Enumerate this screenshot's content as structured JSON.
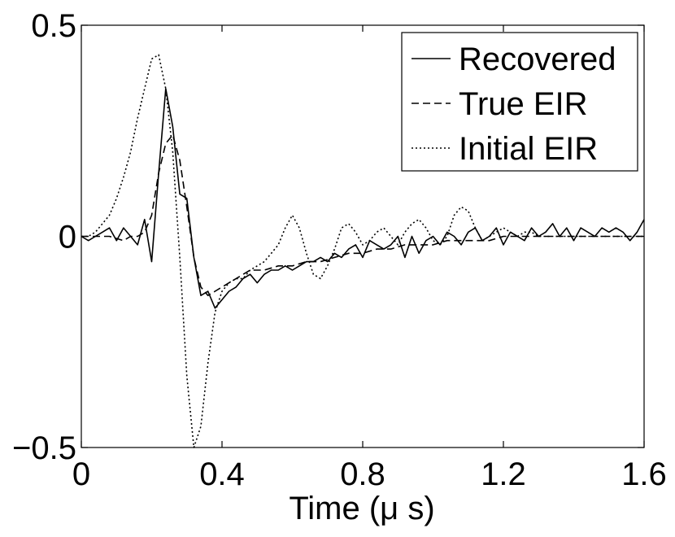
{
  "chart_data": {
    "type": "line",
    "title": "",
    "xlabel": "Time (μ s)",
    "ylabel": "",
    "xlim": [
      0,
      1.6
    ],
    "ylim": [
      -0.5,
      0.5
    ],
    "xticks": [
      0,
      0.4,
      0.8,
      1.2,
      1.6
    ],
    "xtick_labels": [
      "0",
      "0.4",
      "0.8",
      "1.2",
      "1.6"
    ],
    "yticks": [
      -0.5,
      0,
      0.5
    ],
    "ytick_labels": [
      "−0.5",
      "0",
      "0.5"
    ],
    "grid": false,
    "legend_position": "top-right",
    "series": [
      {
        "name": "Recovered",
        "style": "solid",
        "color": "#000000",
        "x": [
          0.0,
          0.02,
          0.04,
          0.06,
          0.08,
          0.1,
          0.12,
          0.14,
          0.16,
          0.18,
          0.2,
          0.22,
          0.24,
          0.26,
          0.28,
          0.3,
          0.32,
          0.34,
          0.36,
          0.38,
          0.4,
          0.42,
          0.44,
          0.46,
          0.48,
          0.5,
          0.52,
          0.54,
          0.56,
          0.58,
          0.6,
          0.62,
          0.64,
          0.66,
          0.68,
          0.7,
          0.72,
          0.74,
          0.76,
          0.78,
          0.8,
          0.82,
          0.84,
          0.86,
          0.88,
          0.9,
          0.92,
          0.94,
          0.96,
          0.98,
          1.0,
          1.02,
          1.04,
          1.06,
          1.08,
          1.1,
          1.12,
          1.14,
          1.16,
          1.18,
          1.2,
          1.22,
          1.24,
          1.26,
          1.28,
          1.3,
          1.32,
          1.34,
          1.36,
          1.38,
          1.4,
          1.42,
          1.44,
          1.46,
          1.48,
          1.5,
          1.52,
          1.54,
          1.56,
          1.58,
          1.6
        ],
        "y": [
          0.0,
          -0.01,
          0.0,
          0.01,
          0.02,
          -0.01,
          0.02,
          0.0,
          -0.02,
          0.04,
          -0.06,
          0.15,
          0.35,
          0.26,
          0.1,
          0.09,
          -0.05,
          -0.14,
          -0.13,
          -0.17,
          -0.15,
          -0.13,
          -0.12,
          -0.1,
          -0.09,
          -0.11,
          -0.09,
          -0.08,
          -0.08,
          -0.07,
          -0.08,
          -0.07,
          -0.06,
          -0.06,
          -0.05,
          -0.06,
          -0.04,
          -0.05,
          -0.03,
          -0.02,
          -0.05,
          -0.01,
          -0.02,
          -0.03,
          -0.02,
          0.0,
          -0.05,
          0.0,
          -0.04,
          -0.01,
          0.0,
          -0.02,
          0.01,
          0.0,
          -0.02,
          0.01,
          0.02,
          -0.01,
          0.0,
          0.02,
          -0.02,
          0.01,
          0.0,
          -0.01,
          0.02,
          0.0,
          0.01,
          0.03,
          0.0,
          0.02,
          -0.01,
          0.02,
          0.01,
          0.0,
          0.02,
          0.01,
          0.02,
          0.01,
          -0.01,
          0.01,
          0.04
        ]
      },
      {
        "name": "True EIR",
        "style": "dashed",
        "color": "#000000",
        "x": [
          0.0,
          0.04,
          0.08,
          0.12,
          0.14,
          0.16,
          0.18,
          0.2,
          0.22,
          0.24,
          0.26,
          0.28,
          0.3,
          0.32,
          0.34,
          0.36,
          0.38,
          0.4,
          0.42,
          0.44,
          0.46,
          0.48,
          0.52,
          0.56,
          0.6,
          0.64,
          0.68,
          0.72,
          0.76,
          0.8,
          0.84,
          0.88,
          0.92,
          0.96,
          1.0,
          1.04,
          1.08,
          1.12,
          1.16,
          1.2,
          1.24,
          1.28,
          1.32,
          1.36,
          1.4,
          1.44,
          1.48,
          1.52,
          1.56,
          1.6
        ],
        "y": [
          0.0,
          0.0,
          0.0,
          -0.01,
          0.0,
          0.0,
          0.01,
          0.05,
          0.15,
          0.22,
          0.24,
          0.18,
          0.07,
          -0.05,
          -0.12,
          -0.14,
          -0.13,
          -0.12,
          -0.11,
          -0.1,
          -0.09,
          -0.08,
          -0.08,
          -0.07,
          -0.07,
          -0.06,
          -0.06,
          -0.05,
          -0.04,
          -0.04,
          -0.03,
          -0.03,
          -0.02,
          -0.02,
          -0.02,
          -0.01,
          -0.01,
          -0.01,
          -0.01,
          0.0,
          0.0,
          0.0,
          0.0,
          0.0,
          0.0,
          0.0,
          0.0,
          0.0,
          0.0,
          0.0
        ]
      },
      {
        "name": "Initial EIR",
        "style": "dotted",
        "color": "#000000",
        "x": [
          0.0,
          0.02,
          0.04,
          0.06,
          0.08,
          0.1,
          0.12,
          0.14,
          0.16,
          0.18,
          0.2,
          0.22,
          0.24,
          0.26,
          0.28,
          0.3,
          0.32,
          0.34,
          0.36,
          0.38,
          0.4,
          0.42,
          0.44,
          0.46,
          0.48,
          0.5,
          0.52,
          0.54,
          0.56,
          0.58,
          0.6,
          0.62,
          0.64,
          0.66,
          0.68,
          0.7,
          0.72,
          0.74,
          0.76,
          0.78,
          0.8,
          0.82,
          0.84,
          0.86,
          0.88,
          0.9,
          0.92,
          0.94,
          0.96,
          0.98,
          1.0,
          1.02,
          1.04,
          1.06,
          1.08,
          1.1,
          1.12,
          1.14,
          1.16,
          1.18,
          1.2,
          1.22,
          1.24,
          1.26,
          1.28,
          1.3,
          1.32,
          1.34,
          1.36,
          1.4,
          1.44,
          1.48,
          1.52,
          1.56,
          1.6
        ],
        "y": [
          0.0,
          0.0,
          0.01,
          0.03,
          0.05,
          0.09,
          0.14,
          0.2,
          0.28,
          0.35,
          0.42,
          0.43,
          0.35,
          0.2,
          -0.05,
          -0.33,
          -0.5,
          -0.45,
          -0.3,
          -0.18,
          -0.13,
          -0.11,
          -0.1,
          -0.1,
          -0.08,
          -0.07,
          -0.06,
          -0.04,
          -0.02,
          0.02,
          0.05,
          0.02,
          -0.04,
          -0.09,
          -0.1,
          -0.07,
          -0.03,
          0.02,
          0.03,
          0.01,
          -0.02,
          -0.01,
          0.01,
          0.02,
          0.0,
          -0.02,
          0.01,
          0.03,
          0.04,
          0.02,
          -0.01,
          -0.02,
          0.0,
          0.05,
          0.07,
          0.06,
          0.02,
          -0.01,
          0.0,
          0.01,
          0.02,
          0.01,
          0.0,
          0.01,
          0.01,
          0.0,
          0.0,
          0.0,
          0.0,
          0.0,
          0.0,
          0.0,
          0.0,
          0.0,
          0.0
        ]
      }
    ]
  }
}
